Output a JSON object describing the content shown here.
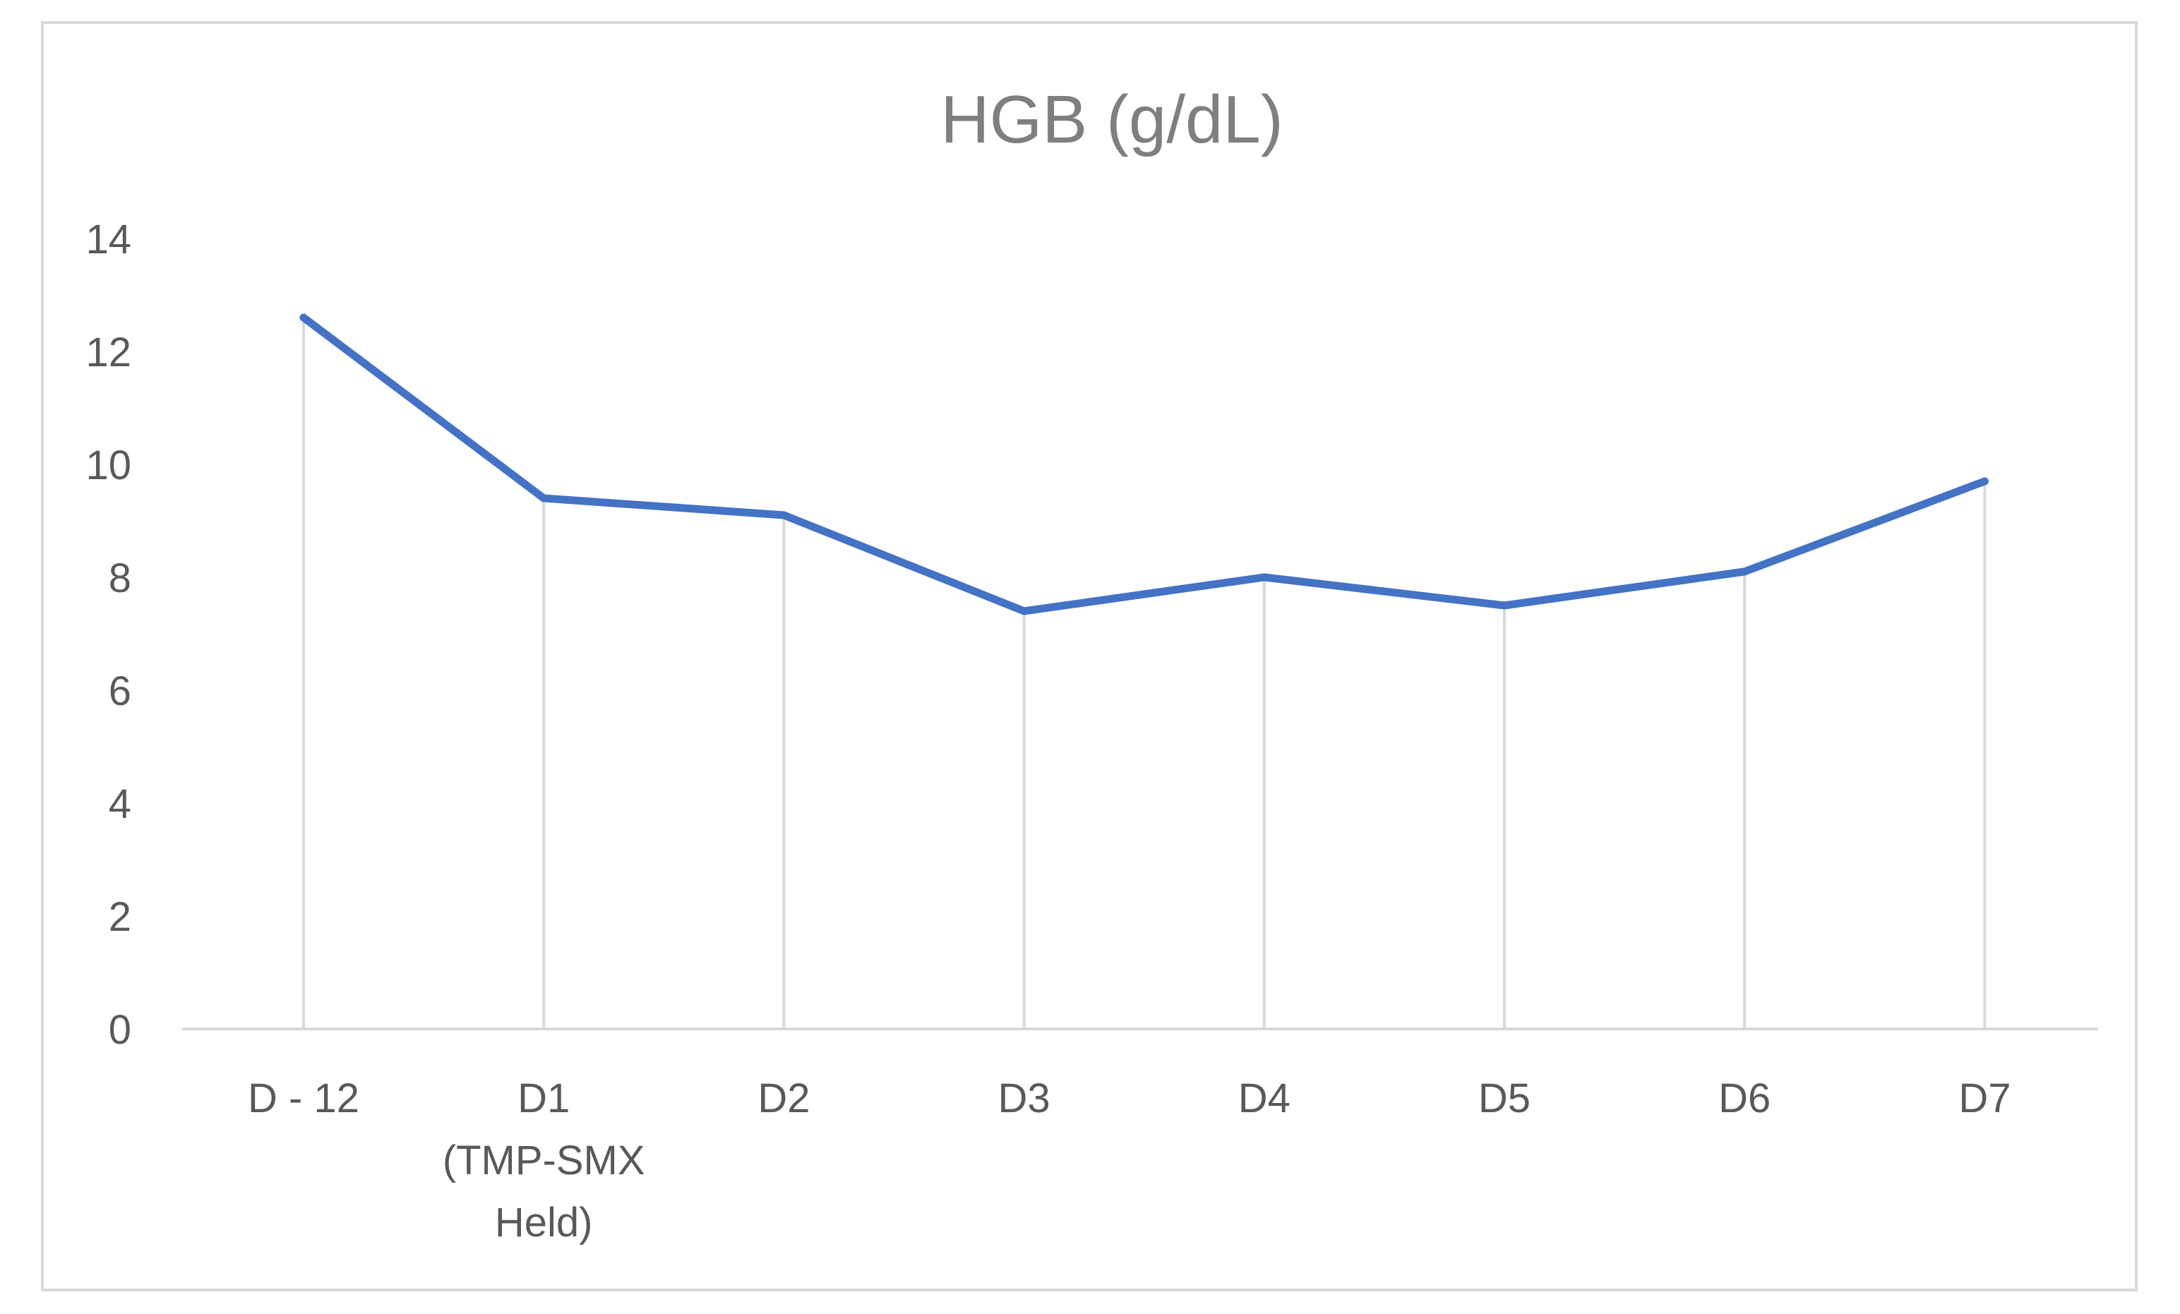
{
  "chart_data": {
    "type": "line",
    "title": "HGB (g/dL)",
    "xlabel": "",
    "ylabel": "",
    "categories": [
      "D - 12",
      "D1 (TMP-SMX Held)",
      "D2",
      "D3",
      "D4",
      "D5",
      "D6",
      "D7"
    ],
    "category_lines": [
      [
        "D - 12"
      ],
      [
        "D1",
        "(TMP-SMX",
        "Held)"
      ],
      [
        "D2"
      ],
      [
        "D3"
      ],
      [
        "D4"
      ],
      [
        "D5"
      ],
      [
        "D6"
      ],
      [
        "D7"
      ]
    ],
    "series": [
      {
        "values": [
          12.6,
          9.4,
          9.1,
          7.4,
          8.0,
          7.5,
          8.1,
          9.7
        ],
        "color": "#4472c4"
      }
    ],
    "ylim": [
      0,
      14
    ],
    "yticks": [
      "0",
      "2",
      "4",
      "6",
      "8",
      "10",
      "12",
      "14"
    ],
    "grid": "vertical",
    "legend": "none",
    "colors": {
      "line": "#4472c4",
      "grid": "#d9d9d9",
      "axis": "#d9d9d9",
      "title": "#7f7f7f",
      "tick_label": "#595959"
    }
  }
}
